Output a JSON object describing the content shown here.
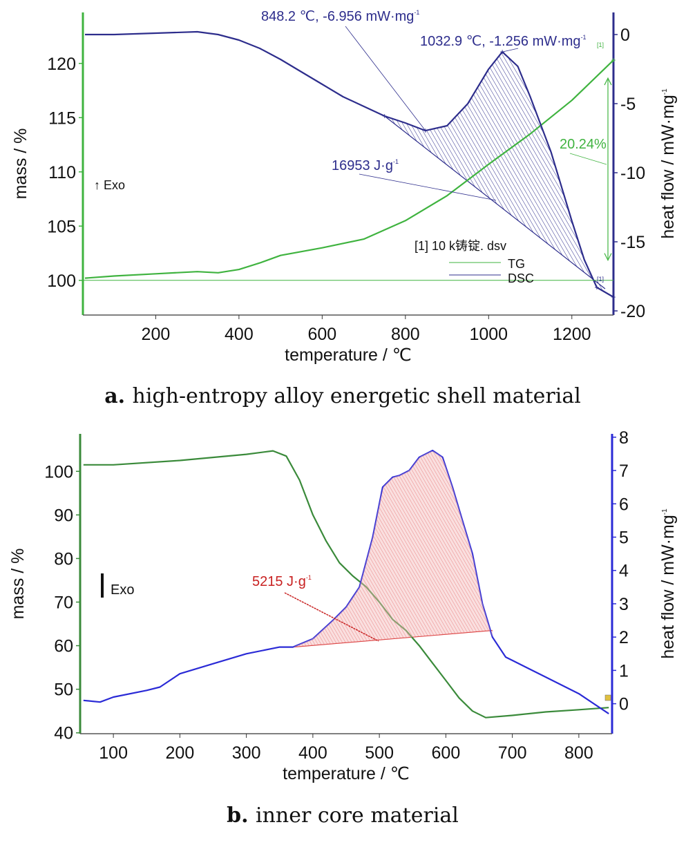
{
  "chart_data": [
    {
      "id": "a",
      "type": "line",
      "caption_letter": "a.",
      "caption_text": "high-entropy alloy energetic shell material",
      "xlabel": "temperature / ℃",
      "ylabel_left": "mass / %",
      "ylabel_right": "heat flow / mW·mg",
      "ylabel_right_sup": "-1",
      "xlim": [
        25,
        1300
      ],
      "ylim_left": [
        96.8,
        124.7
      ],
      "ylim_right": [
        -20.3,
        1.6
      ],
      "xticks": [
        200,
        400,
        600,
        800,
        1000,
        1200
      ],
      "yticks_left": [
        100,
        105,
        110,
        115,
        120
      ],
      "yticks_right": [
        0,
        -5,
        -10,
        -15,
        -20
      ],
      "exo_label": "↑ Exo",
      "file_label": "[1] 10 k铸锭. dsv",
      "series": [
        {
          "name": "TG",
          "axis": "left",
          "color": "#3fb33f",
          "x": [
            30,
            100,
            200,
            300,
            350,
            400,
            450,
            500,
            600,
            700,
            800,
            900,
            1000,
            1100,
            1200,
            1300
          ],
          "y": [
            100.2,
            100.4,
            100.6,
            100.8,
            100.7,
            101.0,
            101.6,
            102.3,
            103.0,
            103.8,
            105.5,
            107.8,
            110.7,
            113.5,
            116.6,
            120.3
          ]
        },
        {
          "name": "DSC",
          "axis": "right",
          "color": "#2d2d8c",
          "x": [
            30,
            100,
            200,
            300,
            350,
            400,
            450,
            500,
            550,
            600,
            650,
            700,
            750,
            800,
            848.2,
            900,
            950,
            1000,
            1032.9,
            1070,
            1100,
            1150,
            1200,
            1230,
            1260,
            1300
          ],
          "y": [
            0.0,
            0.0,
            0.1,
            0.2,
            0.0,
            -0.4,
            -1.0,
            -1.8,
            -2.7,
            -3.6,
            -4.5,
            -5.2,
            -5.9,
            -6.4,
            -6.956,
            -6.6,
            -5.0,
            -2.5,
            -1.256,
            -2.3,
            -4.5,
            -8.5,
            -13.5,
            -16.3,
            -18.3,
            -19.0
          ]
        }
      ],
      "tg_reference": 100.0,
      "peak_area_baseline": {
        "x": [
          750,
          1280
        ],
        "y": [
          -5.9,
          -18.4
        ]
      },
      "peak_area_region": {
        "x_from": 750,
        "x_to": 1280
      },
      "annotations": [
        {
          "text": "848.2 ℃, -6.956 mW·mg",
          "sup": "-1",
          "x": 848.2,
          "y": -6.956,
          "axis": "right",
          "color": "#2d2d8c"
        },
        {
          "text": "1032.9 ℃, -1.256 mW·mg",
          "sup": "-1",
          "x": 1032.9,
          "y": -1.256,
          "axis": "right",
          "color": "#2d2d8c"
        },
        {
          "text": "16953 J·g",
          "sup": "-1",
          "color": "#2d2d8c"
        },
        {
          "text": "20.24%",
          "color": "#3fb33f"
        }
      ],
      "mass_change_arrow": {
        "x": 1300,
        "y_from": 100.2,
        "y_to": 120.3
      },
      "marker_label": "[1]",
      "legend": {
        "placement": "bottom-right",
        "items": [
          "TG",
          "DSC"
        ]
      }
    },
    {
      "id": "b",
      "type": "line",
      "caption_letter": "b.",
      "caption_text": "inner core material",
      "xlabel": "temperature / ℃",
      "ylabel_left": "mass / %",
      "ylabel_right": "heat flow / mW·mg",
      "ylabel_right_sup": "-1",
      "xlim": [
        50,
        850
      ],
      "ylim_left": [
        39.8,
        108.6
      ],
      "ylim_right": [
        -0.9,
        8.1
      ],
      "xticks": [
        100,
        200,
        300,
        400,
        500,
        600,
        700,
        800
      ],
      "yticks_left": [
        40,
        50,
        60,
        70,
        80,
        90,
        100
      ],
      "yticks_right": [
        0,
        1,
        2,
        3,
        4,
        5,
        6,
        7,
        8
      ],
      "exo_label": "Exo",
      "series": [
        {
          "name": "TG",
          "axis": "left",
          "color": "#3a8a3a",
          "x": [
            55,
            100,
            200,
            300,
            340,
            360,
            380,
            400,
            420,
            440,
            460,
            480,
            500,
            520,
            540,
            560,
            580,
            600,
            620,
            640,
            660,
            700,
            750,
            800,
            845
          ],
          "y": [
            101.5,
            101.5,
            102.5,
            103.9,
            104.7,
            103.5,
            98.0,
            90.0,
            84.0,
            79.0,
            76.0,
            73.5,
            70.0,
            66.0,
            63.5,
            60.0,
            56.0,
            52.0,
            48.0,
            45.0,
            43.5,
            44.0,
            44.8,
            45.3,
            45.8
          ]
        },
        {
          "name": "DSC",
          "axis": "right",
          "color": "#2a2ad6",
          "x": [
            55,
            80,
            100,
            150,
            170,
            200,
            250,
            300,
            350,
            370,
            400,
            430,
            450,
            470,
            490,
            505,
            520,
            530,
            545,
            560,
            580,
            595,
            610,
            625,
            640,
            655,
            670,
            690,
            700,
            750,
            800,
            845
          ],
          "y": [
            0.1,
            0.05,
            0.2,
            0.4,
            0.5,
            0.9,
            1.2,
            1.5,
            1.7,
            1.7,
            1.95,
            2.5,
            2.9,
            3.5,
            5.0,
            6.5,
            6.8,
            6.85,
            7.0,
            7.4,
            7.6,
            7.4,
            6.5,
            5.5,
            4.5,
            3.0,
            2.0,
            1.4,
            1.3,
            0.8,
            0.3,
            -0.3
          ]
        }
      ],
      "peak_area_baseline": {
        "x": [
          370,
          670
        ],
        "y": [
          1.7,
          2.2
        ]
      },
      "peak_area_region": {
        "x_from": 370,
        "x_to": 670
      },
      "annotations": [
        {
          "text": "5215 J·g",
          "sup": "-1",
          "color": "#c82020"
        }
      ]
    }
  ]
}
